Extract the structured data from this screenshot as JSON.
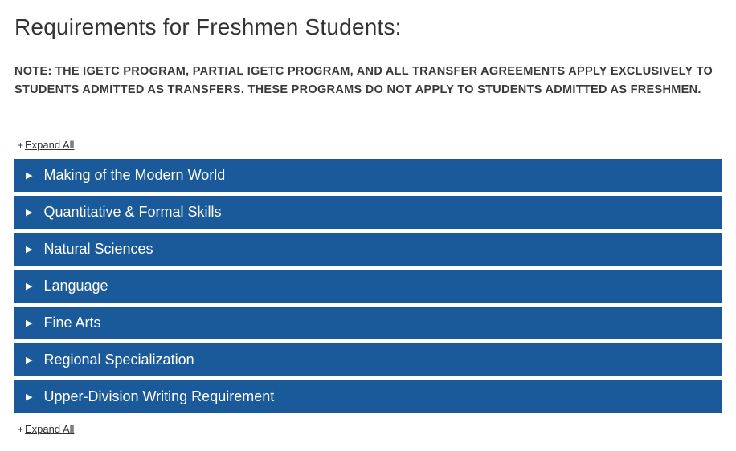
{
  "heading": "Requirements for Freshmen Students:",
  "note": "NOTE: THE IGETC PROGRAM, PARTIAL IGETC PROGRAM, AND ALL TRANSFER AGREEMENTS APPLY EXCLUSIVELY TO STUDENTS ADMITTED AS TRANSFERS. THESE PROGRAMS DO NOT APPLY TO STUDENTS ADMITTED AS FRESHMEN.",
  "expand_all_label": "Expand All",
  "plus_symbol": "+",
  "accordion": {
    "bg_color": "#1a5a9a",
    "text_color": "#ffffff",
    "items": [
      {
        "label": "Making of the Modern World"
      },
      {
        "label": "Quantitative & Formal Skills"
      },
      {
        "label": "Natural Sciences"
      },
      {
        "label": "Language"
      },
      {
        "label": "Fine Arts"
      },
      {
        "label": "Regional Specialization"
      },
      {
        "label": "Upper-Division Writing Requirement"
      }
    ]
  }
}
